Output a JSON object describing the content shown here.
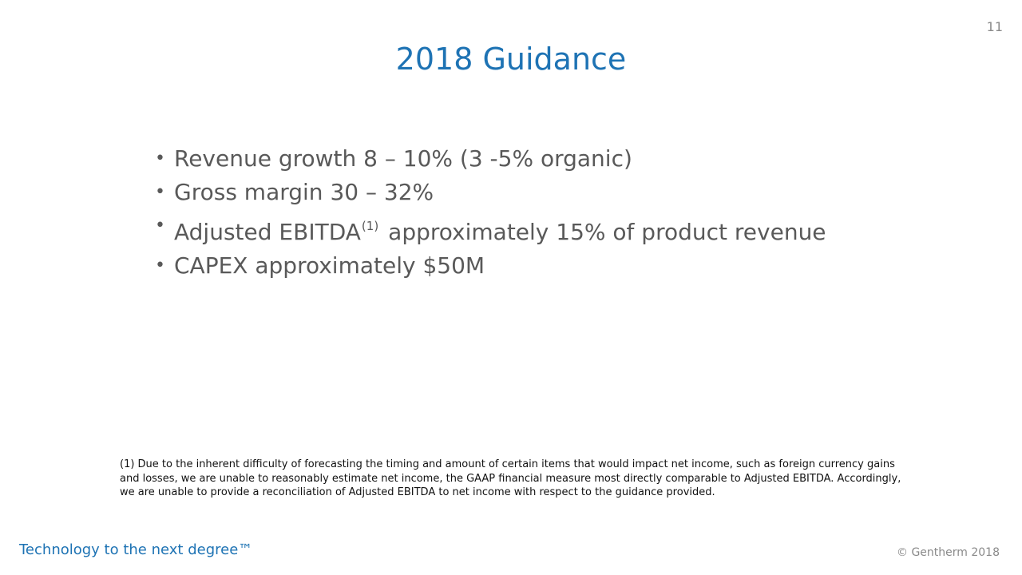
{
  "slide": {
    "page_number": "11",
    "title": "2018 Guidance",
    "bullets": [
      {
        "text": "Revenue growth 8 – 10% (3 -5% organic)"
      },
      {
        "text": "Gross margin 30 – 32%"
      },
      {
        "text_before": "Adjusted EBITDA",
        "superscript": "(1)",
        "text_after": "approximately 15% of product revenue"
      },
      {
        "text": "CAPEX approximately $50M"
      }
    ],
    "bullet_symbol": "•",
    "footnote": "(1) Due to the inherent difficulty of forecasting the timing and amount of certain items that would impact net income, such as foreign currency gains and losses, we are unable to reasonably estimate net income, the GAAP financial measure most directly comparable to Adjusted EBITDA. Accordingly, we are unable to provide a reconciliation of Adjusted EBITDA to net income with respect to the guidance provided.",
    "tagline": "Technology to the next degree™",
    "copyright": "© Gentherm 2018"
  },
  "colors": {
    "title": "#1e73b4",
    "body_text": "#595959",
    "tagline": "#1e73b4",
    "muted": "#8a8a8a"
  }
}
